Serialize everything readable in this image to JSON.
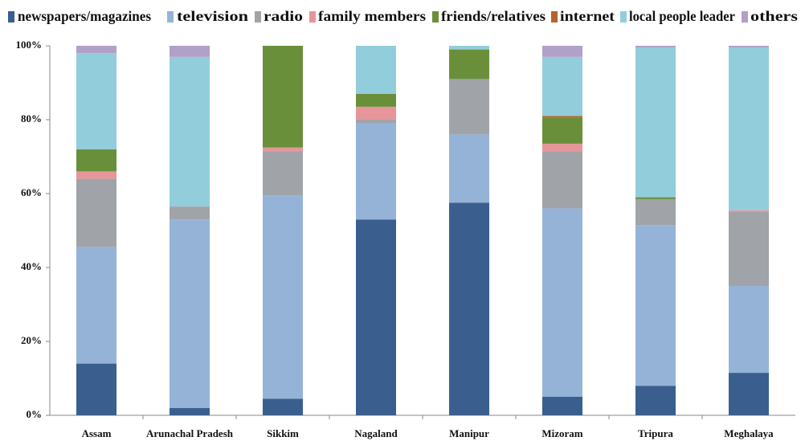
{
  "chart_data": {
    "type": "stacked_bar",
    "categories": [
      "Assam",
      "Arunachal Pradesh",
      "Sikkim",
      "Nagaland",
      "Manipur",
      "Mizoram",
      "Tripura",
      "Meghalaya"
    ],
    "series": [
      {
        "name": "newspapers/magazines",
        "color": "#3a5f8f",
        "values": [
          14,
          2,
          4.5,
          53,
          57.5,
          5,
          8,
          11.5
        ]
      },
      {
        "name": "television",
        "color": "#95b3d7",
        "values": [
          31.5,
          51,
          55,
          26,
          18.5,
          51,
          43.5,
          23.5
        ]
      },
      {
        "name": "radio",
        "color": "#a0a4a8",
        "values": [
          18.5,
          3.5,
          12,
          1,
          15,
          15.5,
          7,
          20
        ]
      },
      {
        "name": "family members",
        "color": "#e6969a",
        "values": [
          2,
          0,
          1,
          3.5,
          0,
          2,
          0,
          0.5
        ]
      },
      {
        "name": "friends/relatives",
        "color": "#6a8f3a",
        "values": [
          6,
          0,
          27.5,
          3.5,
          8,
          7,
          0.5,
          0
        ]
      },
      {
        "name": "internet",
        "color": "#b5652a",
        "values": [
          0,
          0,
          0,
          0,
          0,
          0.5,
          0,
          0
        ]
      },
      {
        "name": "local people leader",
        "color": "#92cddc",
        "values": [
          26,
          40.5,
          0,
          13,
          1,
          16,
          40.5,
          44
        ]
      },
      {
        "name": "others",
        "color": "#b1a0c7",
        "values": [
          2,
          3,
          0,
          0,
          0,
          3,
          0.5,
          0.5
        ]
      }
    ],
    "ylim": [
      0,
      100
    ],
    "yticks": [
      {
        "value": 0,
        "label": "0%"
      },
      {
        "value": 20,
        "label": "20%"
      },
      {
        "value": 40,
        "label": "40%"
      },
      {
        "value": 60,
        "label": "60%"
      },
      {
        "value": 80,
        "label": "80%"
      },
      {
        "value": 100,
        "label": "100%"
      }
    ],
    "legend": "top"
  }
}
